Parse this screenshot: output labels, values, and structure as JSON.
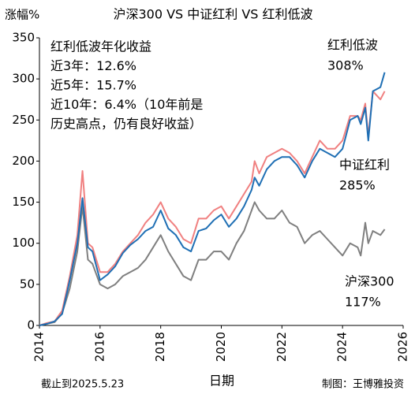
{
  "chart_data": {
    "type": "line",
    "title": "沪深300 VS 中证红利 VS 红利低波",
    "y_label": "涨幅%",
    "x_label": "日期",
    "footer_left": "截止到2025.5.23",
    "footer_right": "制图：王博雅投资",
    "annotation": {
      "color": "#1f6fb4",
      "lines": [
        "红利低波年化收益",
        "近3年：12.6%",
        "近5年：15.7%",
        "近10年：6.4%（10年前是",
        "历史高点，仍有良好收益）"
      ]
    },
    "x": [
      2014.0,
      2014.25,
      2014.5,
      2014.75,
      2015.0,
      2015.25,
      2015.42,
      2015.6,
      2015.75,
      2016.0,
      2016.25,
      2016.5,
      2016.75,
      2017.0,
      2017.25,
      2017.5,
      2017.75,
      2018.0,
      2018.25,
      2018.5,
      2018.75,
      2019.0,
      2019.25,
      2019.5,
      2019.75,
      2020.0,
      2020.25,
      2020.5,
      2020.75,
      2021.0,
      2021.1,
      2021.25,
      2021.5,
      2021.75,
      2022.0,
      2022.25,
      2022.5,
      2022.75,
      2023.0,
      2023.25,
      2023.5,
      2023.75,
      2024.0,
      2024.25,
      2024.5,
      2024.6,
      2024.75,
      2024.85,
      2025.0,
      2025.25,
      2025.39
    ],
    "series": [
      {
        "name": "沪深300",
        "color": "#7f7f7f",
        "values": [
          0,
          2,
          4,
          15,
          45,
          90,
          145,
          80,
          75,
          50,
          45,
          50,
          60,
          65,
          70,
          80,
          95,
          110,
          90,
          75,
          60,
          55,
          80,
          80,
          90,
          90,
          80,
          100,
          115,
          140,
          150,
          140,
          130,
          130,
          140,
          125,
          120,
          100,
          110,
          115,
          105,
          95,
          85,
          100,
          95,
          85,
          125,
          100,
          115,
          110,
          117
        ],
        "value_labels": [
          null,
          null,
          null,
          null,
          null,
          null,
          null,
          null,
          null,
          null,
          null,
          null,
          null,
          null,
          null,
          null,
          null,
          null,
          null,
          null,
          null,
          null,
          null,
          null,
          null,
          null,
          null,
          null,
          null,
          null,
          null,
          null,
          null,
          null,
          null,
          null,
          null,
          null,
          null,
          null,
          null,
          null,
          null,
          null,
          null,
          null,
          null,
          null,
          null,
          null,
          "117%"
        ]
      },
      {
        "name": "中证红利",
        "color": "#f08080",
        "values": [
          0,
          3,
          5,
          18,
          60,
          110,
          188,
          100,
          95,
          65,
          65,
          75,
          90,
          100,
          110,
          125,
          135,
          150,
          130,
          120,
          105,
          100,
          130,
          130,
          140,
          145,
          130,
          145,
          160,
          175,
          200,
          185,
          205,
          210,
          215,
          210,
          200,
          185,
          205,
          225,
          215,
          215,
          225,
          255,
          255,
          250,
          270,
          230,
          285,
          275,
          285
        ],
        "value_labels": [
          null,
          null,
          null,
          null,
          null,
          null,
          null,
          null,
          null,
          null,
          null,
          null,
          null,
          null,
          null,
          null,
          null,
          null,
          null,
          null,
          null,
          null,
          null,
          null,
          null,
          null,
          null,
          null,
          null,
          null,
          null,
          null,
          null,
          null,
          null,
          null,
          null,
          null,
          null,
          null,
          null,
          null,
          null,
          null,
          null,
          null,
          null,
          null,
          null,
          null,
          "285%"
        ]
      },
      {
        "name": "红利低波",
        "color": "#1f6fb4",
        "values": [
          0,
          2,
          5,
          14,
          55,
          100,
          155,
          95,
          90,
          55,
          62,
          72,
          88,
          98,
          105,
          115,
          120,
          140,
          118,
          110,
          95,
          90,
          115,
          118,
          128,
          135,
          120,
          130,
          145,
          165,
          180,
          170,
          190,
          200,
          205,
          205,
          195,
          180,
          200,
          215,
          210,
          205,
          215,
          250,
          255,
          245,
          265,
          225,
          285,
          290,
          308
        ],
        "value_labels": [
          null,
          null,
          null,
          null,
          null,
          null,
          null,
          null,
          null,
          null,
          null,
          null,
          null,
          null,
          null,
          null,
          null,
          null,
          null,
          null,
          null,
          null,
          null,
          null,
          null,
          null,
          null,
          null,
          null,
          null,
          null,
          null,
          null,
          null,
          null,
          null,
          null,
          null,
          null,
          null,
          null,
          null,
          null,
          null,
          null,
          null,
          null,
          null,
          null,
          null,
          "308%"
        ]
      }
    ],
    "xlim": [
      2014,
      2026
    ],
    "xticks": [
      2014,
      2016,
      2018,
      2020,
      2022,
      2024,
      2026
    ],
    "ylim": [
      0,
      350
    ],
    "yticks": [
      0,
      50,
      100,
      150,
      200,
      250,
      300,
      350
    ],
    "grid": false
  }
}
